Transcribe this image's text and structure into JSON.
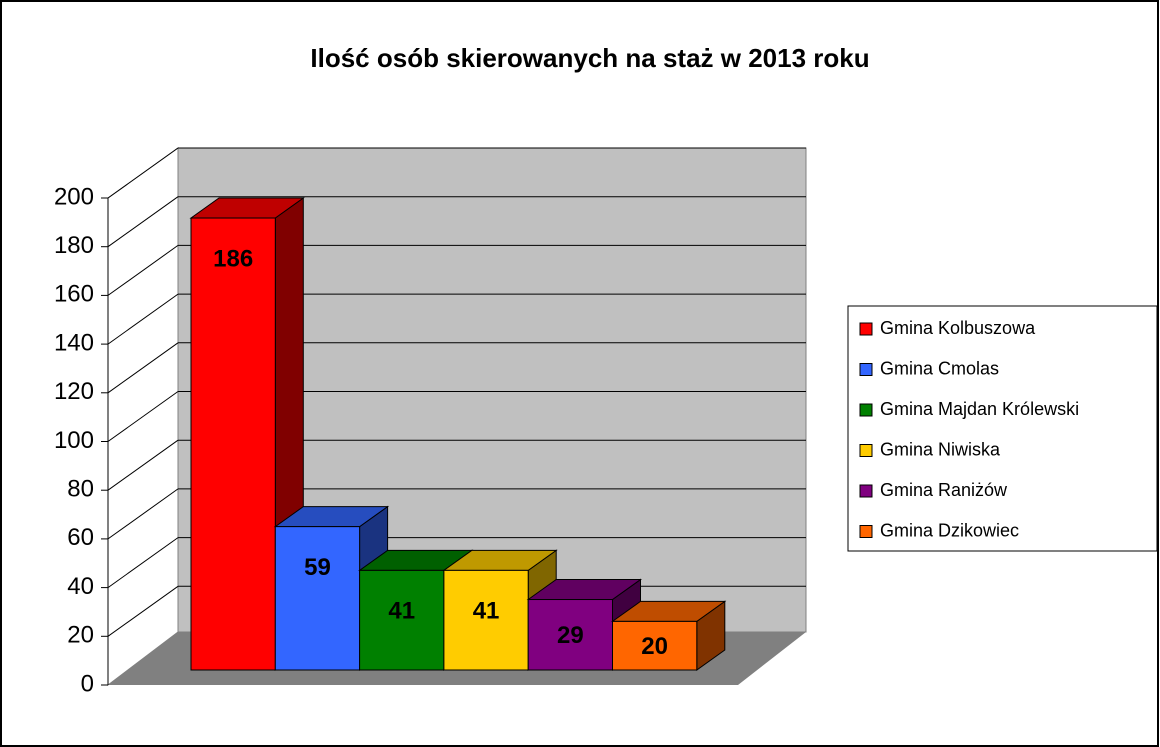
{
  "chart_data": {
    "type": "bar3d",
    "title": "Ilość osób skierowanych na staż w 2013 roku",
    "categories": [
      "Gmina Kolbuszowa",
      "Gmina Cmolas",
      "Gmina Majdan Królewski",
      "Gmina Niwiska",
      "Gmina Raniżów",
      "Gmina Dzikowiec"
    ],
    "values": [
      186,
      59,
      41,
      41,
      29,
      20
    ],
    "colors": [
      "#ff0000",
      "#3366ff",
      "#008000",
      "#ffcc00",
      "#800080",
      "#ff6600"
    ],
    "ylim": [
      0,
      200
    ],
    "yticks": [
      0,
      20,
      40,
      60,
      80,
      100,
      120,
      140,
      160,
      180,
      200
    ],
    "grid": true,
    "legend": "right"
  }
}
